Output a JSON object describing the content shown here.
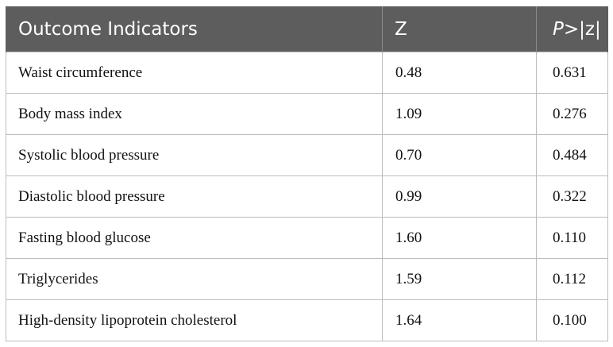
{
  "table": {
    "headers": {
      "indicator": "Outcome Indicators",
      "z": "Z",
      "p_italic": "P",
      "p_rest": ">|z|"
    },
    "rows": [
      {
        "indicator": "Waist circumference",
        "z": "0.48",
        "p": "0.631"
      },
      {
        "indicator": "Body mass index",
        "z": "1.09",
        "p": "0.276"
      },
      {
        "indicator": "Systolic blood pressure",
        "z": "0.70",
        "p": "0.484"
      },
      {
        "indicator": "Diastolic blood pressure",
        "z": "0.99",
        "p": "0.322"
      },
      {
        "indicator": "Fasting blood glucose",
        "z": "1.60",
        "p": "0.110"
      },
      {
        "indicator": "Triglycerides",
        "z": "1.59",
        "p": "0.112"
      },
      {
        "indicator": "High-density lipoprotein cholesterol",
        "z": "1.64",
        "p": "0.100"
      }
    ]
  }
}
